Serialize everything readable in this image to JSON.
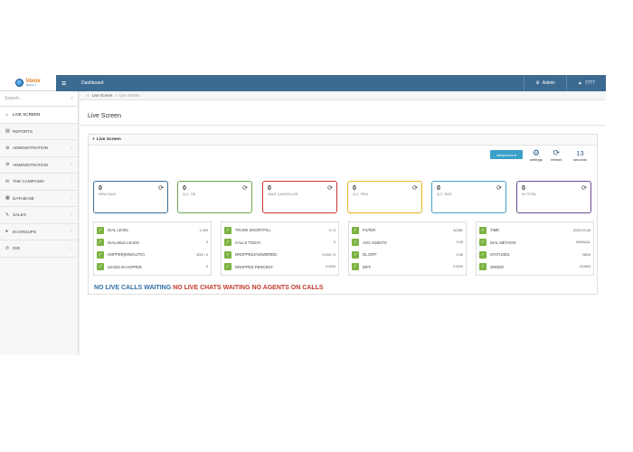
{
  "topbar": {
    "logo_text": "Vonix",
    "logo_sub": "Telecom",
    "title": "Dashboard",
    "user": "Admin",
    "notif": "7777"
  },
  "sidebar": {
    "search_placeholder": "Search...",
    "items": [
      {
        "label": "Live Screen",
        "icon": "home-icon",
        "active": true
      },
      {
        "label": "Reports",
        "icon": "reports-icon"
      },
      {
        "label": "Administration",
        "icon": "gear-icon",
        "arrow": true
      },
      {
        "label": "Administration",
        "icon": "gear-icon",
        "arrow": true
      },
      {
        "label": "The Campaign",
        "icon": "megaphone-icon",
        "arrow": true
      },
      {
        "label": "Database",
        "icon": "database-icon",
        "arrow": true
      },
      {
        "label": "Sales",
        "icon": "sales-icon",
        "arrow": true
      },
      {
        "label": "In-Groups",
        "icon": "group-icon",
        "arrow": true
      },
      {
        "label": "DID",
        "icon": "phone-icon",
        "arrow": true
      }
    ]
  },
  "breadcrumb": {
    "root": "Live Screen",
    "current": "Live Screen"
  },
  "page_title": "Live Screen",
  "panel": {
    "title": "Live Screen",
    "webphone": "webphone",
    "settings": "settings",
    "refresh": "refresh",
    "seconds_value": "13",
    "seconds_label": "seconds"
  },
  "stats": [
    {
      "value": "0",
      "label": "New Sale",
      "color": "#3c6a91"
    },
    {
      "value": "0",
      "label": "Q.C. OK",
      "color": "#6aa84f"
    },
    {
      "value": "0",
      "label": "Sale Cancelled",
      "color": "#cc3333"
    },
    {
      "value": "0",
      "label": "Q.C. Req",
      "color": "#e6b422"
    },
    {
      "value": "0",
      "label": "Q.C. EMT",
      "color": "#4aa3c9"
    },
    {
      "value": "0",
      "label": "In Total",
      "color": "#6a4c93"
    }
  ],
  "tables": [
    [
      {
        "k": "Dial Level",
        "v": "1.000"
      },
      {
        "k": "Dialable Leads",
        "v": "0"
      },
      {
        "k": "Hopper(min/auto)",
        "v": "50/1 / 0"
      },
      {
        "k": "Leads in Hopper",
        "v": "0"
      }
    ],
    [
      {
        "k": "Trunk Short/Fill",
        "v": "0 / 0"
      },
      {
        "k": "Calls Today",
        "v": "0"
      },
      {
        "k": "Dropped/Answered",
        "v": "0.000 / 0"
      },
      {
        "k": "Dropped Percent",
        "v": "0.00%"
      }
    ],
    [
      {
        "k": "Filter",
        "v": "NONE"
      },
      {
        "k": "Avg Agents",
        "v": "0.00"
      },
      {
        "k": "DL Diff",
        "v": "0.00"
      },
      {
        "k": "Diff",
        "v": "0.00%"
      }
    ],
    [
      {
        "k": "Time",
        "v": "2020-03-06"
      },
      {
        "k": "Dial Method",
        "v": "MANUAL"
      },
      {
        "k": "Statuses",
        "v": "NEW"
      },
      {
        "k": "Order",
        "v": "DOWN"
      }
    ]
  ],
  "status": {
    "calls": "NO LIVE CALLS WAITING",
    "chats_agents": "NO LIVE CHATS WAITING NO AGENTS ON CALLS"
  }
}
